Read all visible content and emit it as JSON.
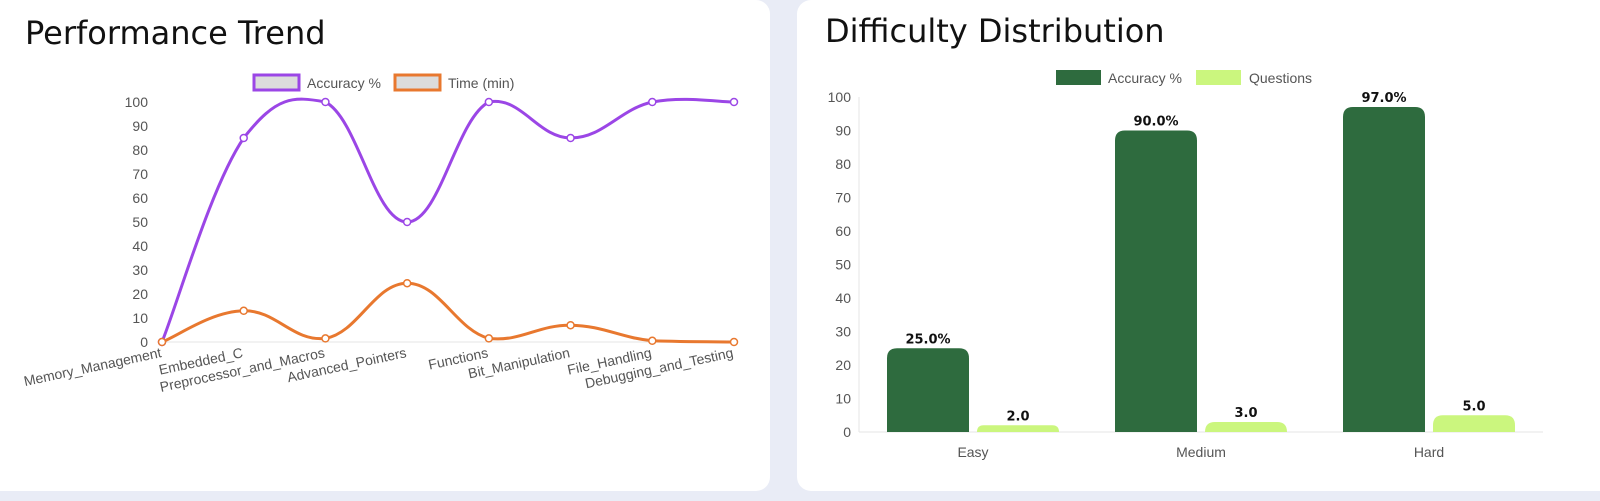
{
  "cards": [
    {
      "title": "Performance Trend"
    },
    {
      "title": "Difficulty Distribution"
    }
  ],
  "colors": {
    "accuracy_line": "#9b46e6",
    "time_line": "#e8782f",
    "accuracy_bar": "#2e6b3e",
    "questions_bar": "#cbf67e",
    "legend_fill": "#dcdcdc"
  },
  "chart_data": [
    {
      "type": "line",
      "title": "Performance Trend",
      "categories": [
        "Memory_Management",
        "Embedded_C",
        "Preprocessor_and_Macros",
        "Advanced_Pointers",
        "Functions",
        "Bit_Manipulation",
        "File_Handling",
        "Debugging_and_Testing"
      ],
      "series": [
        {
          "name": "Accuracy %",
          "values": [
            0,
            85,
            100,
            50,
            100,
            85,
            100,
            100
          ]
        },
        {
          "name": "Time (min)",
          "values": [
            0,
            13,
            1.5,
            24.5,
            1.5,
            7,
            0.5,
            0
          ]
        }
      ],
      "ylim": [
        0,
        100
      ],
      "yticks": [
        0,
        10,
        20,
        30,
        40,
        50,
        60,
        70,
        80,
        90,
        100
      ],
      "legend": "top-center",
      "grid": false
    },
    {
      "type": "bar",
      "title": "Difficulty Distribution",
      "categories": [
        "Easy",
        "Medium",
        "Hard"
      ],
      "series": [
        {
          "name": "Accuracy %",
          "values": [
            25.0,
            90.0,
            97.0
          ],
          "labels": [
            "25.0%",
            "90.0%",
            "97.0%"
          ]
        },
        {
          "name": "Questions",
          "values": [
            2.0,
            3.0,
            5.0
          ],
          "labels": [
            "2.0",
            "3.0",
            "5.0"
          ]
        }
      ],
      "ylim": [
        0,
        100
      ],
      "yticks": [
        0,
        10,
        20,
        30,
        40,
        50,
        60,
        70,
        80,
        90,
        100
      ],
      "legend": "top-center",
      "grid": false
    }
  ]
}
